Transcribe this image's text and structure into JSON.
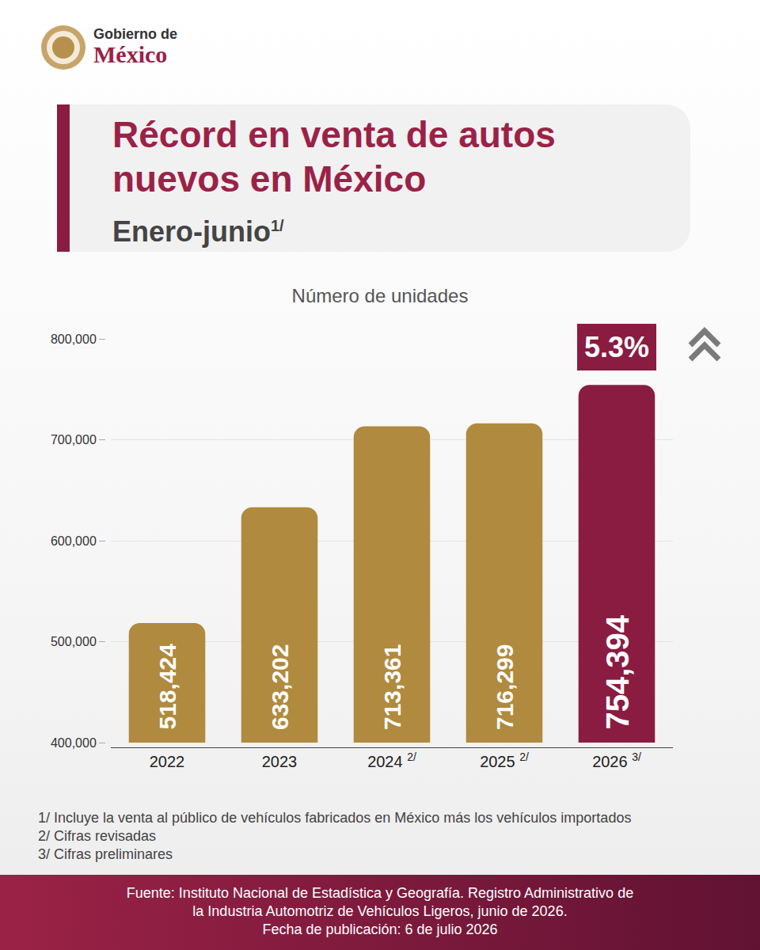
{
  "header": {
    "logo_line1": "Gobierno de",
    "logo_line2": "México"
  },
  "title": "Récord en venta de autos nuevos en México",
  "subtitle": "Enero-junio",
  "subtitle_note": "1/",
  "chart_data": {
    "type": "bar",
    "title": "Número de unidades",
    "categories": [
      "2022",
      "2023",
      "2024",
      "2025",
      "2026"
    ],
    "category_notes": [
      null,
      null,
      "2/",
      "2/",
      "3/"
    ],
    "values": [
      518424,
      633202,
      713361,
      716299,
      754394
    ],
    "value_labels": [
      "518,424",
      "633,202",
      "713,361",
      "716,299",
      "754,394"
    ],
    "data_labels": true,
    "colors": [
      "#b08a3e",
      "#b08a3e",
      "#b08a3e",
      "#b08a3e",
      "#8a1c42"
    ],
    "ylim": [
      400000,
      800000
    ],
    "yticks": [
      {
        "value": 400000,
        "label": "400,000"
      },
      {
        "value": 500000,
        "label": "500,000"
      },
      {
        "value": 600000,
        "label": "600,000"
      },
      {
        "value": 700000,
        "label": "700,000"
      },
      {
        "value": 800000,
        "label": "800,000"
      }
    ],
    "grid": true,
    "annotations": [
      {
        "text": "5.3%",
        "category": "2026"
      }
    ]
  },
  "footnotes": [
    "1/ Incluye la venta al público de vehículos fabricados en México más los vehículos importados",
    "2/ Cifras revisadas",
    "3/ Cifras preliminares"
  ],
  "source": [
    "Fuente: Instituto Nacional de Estadística y Geografía. Registro Administrativo de",
    "la Industria Automotriz de Vehículos Ligeros, junio de 2026.",
    "Fecha de publicación: 6 de julio 2026"
  ]
}
